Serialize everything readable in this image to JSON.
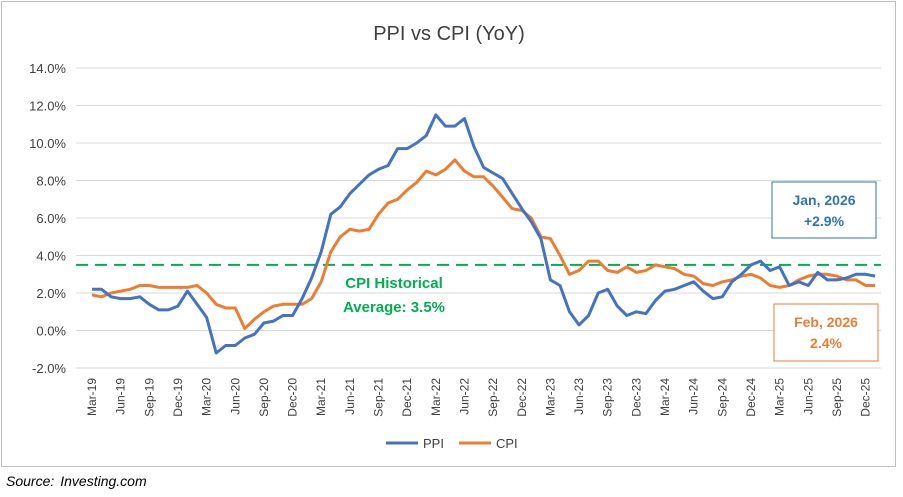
{
  "chart_data": {
    "type": "line",
    "title": "PPI vs CPI (YoY)",
    "ylim": [
      -2.0,
      14.0
    ],
    "yticks": [
      "14.0%",
      "12.0%",
      "10.0%",
      "8.0%",
      "6.0%",
      "4.0%",
      "2.0%",
      "0.0%",
      "-2.0%"
    ],
    "ytick_values": [
      14,
      12,
      10,
      8,
      6,
      4,
      2,
      0,
      -2
    ],
    "x_start": "Mar-19",
    "xtick_labels": [
      "Mar-19",
      "Jun-19",
      "Sep-19",
      "Dec-19",
      "Mar-20",
      "Jun-20",
      "Sep-20",
      "Dec-20",
      "Mar-21",
      "Jun-21",
      "Sep-21",
      "Dec-21",
      "Mar-22",
      "Jun-22",
      "Sep-22",
      "Dec-22",
      "Mar-23",
      "Jun-23",
      "Sep-23",
      "Dec-23",
      "Mar-24",
      "Jun-24",
      "Sep-24",
      "Dec-24",
      "Mar-25",
      "Jun-25",
      "Sep-25",
      "Dec-25"
    ],
    "series": [
      {
        "name": "PPI",
        "color": "#4472C4",
        "values": [
          2.2,
          2.2,
          1.8,
          1.7,
          1.7,
          1.8,
          1.4,
          1.1,
          1.1,
          1.3,
          2.1,
          1.4,
          0.7,
          -1.2,
          -0.8,
          -0.8,
          -0.4,
          -0.2,
          0.4,
          0.5,
          0.8,
          0.8,
          1.7,
          2.8,
          4.2,
          6.2,
          6.6,
          7.3,
          7.8,
          8.3,
          8.6,
          8.8,
          9.7,
          9.7,
          10.0,
          10.4,
          11.5,
          10.9,
          10.9,
          11.3,
          9.8,
          8.7,
          8.4,
          8.1,
          7.3,
          6.5,
          5.8,
          4.9,
          2.7,
          2.4,
          1.0,
          0.3,
          0.8,
          2.0,
          2.2,
          1.3,
          0.8,
          1.0,
          0.9,
          1.6,
          2.1,
          2.2,
          2.4,
          2.6,
          2.1,
          1.7,
          1.8,
          2.6,
          3.0,
          3.5,
          3.7,
          3.2,
          3.4,
          2.4,
          2.6,
          2.4,
          3.1,
          2.7,
          2.7,
          2.8,
          3.0,
          3.0,
          2.9
        ]
      },
      {
        "name": "CPI",
        "color": "#ED7D31",
        "values": [
          1.9,
          1.8,
          2.0,
          2.1,
          2.2,
          2.4,
          2.4,
          2.3,
          2.3,
          2.3,
          2.3,
          2.4,
          2.0,
          1.4,
          1.2,
          1.2,
          0.1,
          0.6,
          1.0,
          1.3,
          1.4,
          1.4,
          1.4,
          1.7,
          2.6,
          4.2,
          5.0,
          5.4,
          5.3,
          5.4,
          6.2,
          6.8,
          7.0,
          7.5,
          7.9,
          8.5,
          8.3,
          8.6,
          9.1,
          8.5,
          8.2,
          8.2,
          7.7,
          7.1,
          6.5,
          6.4,
          6.0,
          5.0,
          4.9,
          4.0,
          3.0,
          3.2,
          3.7,
          3.7,
          3.2,
          3.1,
          3.4,
          3.1,
          3.2,
          3.5,
          3.4,
          3.3,
          3.0,
          2.9,
          2.5,
          2.4,
          2.6,
          2.7,
          2.9,
          3.0,
          2.8,
          2.4,
          2.3,
          2.4,
          2.7,
          2.9,
          3.0,
          3.0,
          2.9,
          2.7,
          2.7,
          2.4,
          2.4
        ]
      }
    ],
    "reference_line": {
      "value": 3.5,
      "color": "#00B050",
      "label_line1": "CPI Historical",
      "label_line2": "Average:  3.5%"
    },
    "annotations": [
      {
        "line1": "Jan, 2026",
        "line2": "+2.9%",
        "color": "#2E75B6"
      },
      {
        "line1": "Feb, 2026",
        "line2": "2.4%",
        "color": "#ED7D31"
      }
    ],
    "legend_position": "bottom-center"
  },
  "source": {
    "label": "Source:",
    "text": "Investing.com"
  }
}
